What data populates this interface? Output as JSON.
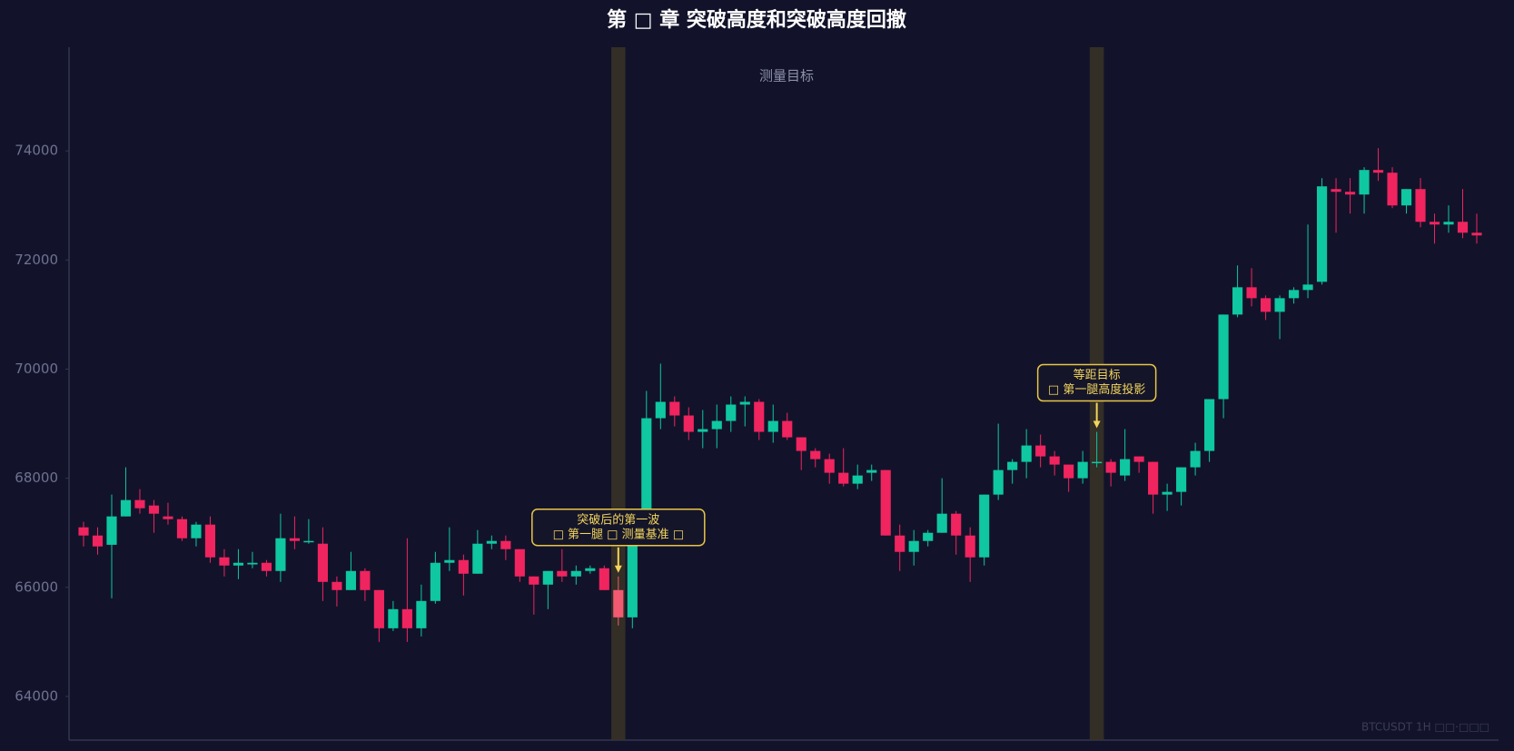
{
  "chart_data": {
    "type": "candlestick",
    "title": "第 □ 章 突破高度和突破高度回撤",
    "band_label": "测量目标",
    "watermark": "BTCUSDT 1H  □□·□□□",
    "up_color": "#0fc7a1",
    "down_color": "#f0245f",
    "highlight_color": "#f25a72",
    "band_color": "#3a3426",
    "ylim": [
      63200,
      75900
    ],
    "yticks": [
      64000,
      66000,
      68000,
      70000,
      72000,
      74000
    ],
    "grid": false,
    "highlight_indices": [
      38,
      72
    ],
    "annotations": [
      {
        "index": 38,
        "lines": [
          "突破后的第一波",
          "□ 第一腿 □ 测量基准 □"
        ]
      },
      {
        "index": 72,
        "lines": [
          "等距目标",
          "□ 第一腿高度投影"
        ]
      }
    ],
    "open": [
      67100,
      66950,
      66780,
      67300,
      67600,
      67500,
      67300,
      67250,
      66900,
      67150,
      66550,
      66400,
      66420,
      66450,
      66300,
      66900,
      66850,
      66800,
      66100,
      65950,
      66300,
      65950,
      65250,
      65600,
      65250,
      65750,
      66450,
      66500,
      66250,
      66800,
      66850,
      66700,
      66200,
      66050,
      66300,
      66200,
      66300,
      66350,
      65950,
      65450,
      66950,
      69100,
      69400,
      69150,
      68850,
      68900,
      69050,
      69350,
      69400,
      68850,
      69050,
      68750,
      68500,
      68350,
      68100,
      67900,
      68100,
      68150,
      66950,
      66650,
      66850,
      67000,
      67350,
      66950,
      66550,
      67700,
      68150,
      68300,
      68600,
      68400,
      68250,
      68000,
      68300,
      68300,
      68050,
      68400,
      68300,
      67700,
      67750,
      68200,
      68500,
      69450,
      71000,
      71500,
      71300,
      71050,
      71300,
      71450,
      71600,
      73300,
      73250,
      73200,
      73650,
      73600,
      73000,
      73300,
      72700,
      72650,
      72700,
      72500
    ],
    "high": [
      67200,
      67100,
      67700,
      68200,
      67800,
      67600,
      67550,
      67300,
      67200,
      67300,
      66700,
      66700,
      66650,
      66500,
      67350,
      67300,
      67250,
      67100,
      66200,
      66650,
      66350,
      65950,
      65750,
      66900,
      66050,
      66650,
      67100,
      66600,
      67050,
      66950,
      66950,
      66700,
      66200,
      66300,
      66700,
      66400,
      66400,
      66400,
      66200,
      67000,
      69600,
      70100,
      69500,
      69300,
      69250,
      69350,
      69500,
      69500,
      69450,
      69350,
      69200,
      68750,
      68550,
      68450,
      68550,
      68250,
      68250,
      68150,
      67150,
      67050,
      67050,
      68000,
      67400,
      67100,
      67700,
      69000,
      68350,
      68900,
      68800,
      68500,
      68250,
      68500,
      68850,
      68350,
      68900,
      68400,
      68300,
      67900,
      68200,
      68650,
      69450,
      71000,
      71900,
      71850,
      71350,
      71350,
      71500,
      72650,
      73500,
      73500,
      73500,
      73700,
      74050,
      73700,
      73300,
      73500,
      72850,
      73000,
      73300,
      72850
    ],
    "low": [
      66750,
      66600,
      65800,
      67300,
      67350,
      67000,
      67150,
      66850,
      66750,
      66450,
      66200,
      66150,
      66350,
      66200,
      66100,
      66700,
      66800,
      65750,
      65650,
      65950,
      65750,
      65000,
      65200,
      65000,
      65100,
      65700,
      66300,
      65850,
      66250,
      66700,
      66500,
      66100,
      65500,
      65600,
      66100,
      66050,
      66250,
      65950,
      65300,
      65250,
      66800,
      68900,
      68950,
      68700,
      68550,
      68550,
      68850,
      68950,
      68700,
      68650,
      68700,
      68150,
      68200,
      67900,
      67850,
      67800,
      67950,
      66950,
      66300,
      66400,
      66750,
      67000,
      66600,
      66100,
      66400,
      67600,
      67900,
      68000,
      68200,
      68050,
      67750,
      67900,
      68200,
      67850,
      67950,
      68100,
      67350,
      67400,
      67500,
      68050,
      68300,
      69100,
      70950,
      71150,
      70900,
      70550,
      71200,
      71300,
      71550,
      72500,
      72850,
      72850,
      73450,
      72950,
      72850,
      72600,
      72300,
      72500,
      72400,
      72300
    ],
    "close": [
      66950,
      66750,
      67300,
      67600,
      67450,
      67350,
      67250,
      66900,
      67150,
      66550,
      66400,
      66450,
      66450,
      66300,
      66900,
      66850,
      66850,
      66100,
      65950,
      66300,
      65950,
      65250,
      65600,
      65250,
      65750,
      66450,
      66500,
      66250,
      66800,
      66850,
      66700,
      66200,
      66050,
      66300,
      66200,
      66300,
      66350,
      65950,
      65450,
      66950,
      69100,
      69400,
      69150,
      68850,
      68900,
      69050,
      69350,
      69400,
      68850,
      69050,
      68750,
      68500,
      68350,
      68100,
      67900,
      68050,
      68150,
      66950,
      66650,
      66850,
      67000,
      67350,
      66950,
      66550,
      67700,
      68150,
      68300,
      68600,
      68400,
      68250,
      68000,
      68300,
      68300,
      68100,
      68350,
      68300,
      67700,
      67750,
      68200,
      68500,
      69450,
      71000,
      71500,
      71300,
      71050,
      71300,
      71450,
      71550,
      73350,
      73250,
      73200,
      73650,
      73600,
      73000,
      73300,
      72700,
      72650,
      72700,
      72500,
      72450
    ]
  }
}
